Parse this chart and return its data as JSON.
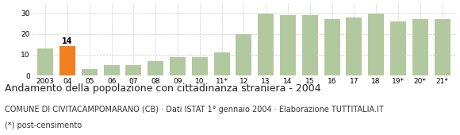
{
  "categories": [
    "2003",
    "04",
    "05",
    "06",
    "07",
    "08",
    "09",
    "10",
    "11*",
    "12",
    "13",
    "14",
    "15",
    "16",
    "17",
    "18",
    "19*",
    "20*",
    "21*"
  ],
  "values": [
    13,
    14,
    3,
    5,
    5,
    7,
    9,
    9,
    11,
    20,
    30,
    29,
    29,
    27,
    28,
    30,
    26,
    27,
    27
  ],
  "highlight_index": 1,
  "highlight_value": 14,
  "bar_color_normal": "#b2c9a0",
  "bar_color_highlight": "#f28020",
  "background_color": "#ffffff",
  "grid_color": "#cccccc",
  "title": "Andamento della popolazione con cittadinanza straniera - 2004",
  "subtitle": "COMUNE DI CIVITACAMPOMARANO (CB) · Dati ISTAT 1° gennaio 2004 · Elaborazione TUTTITALIA.IT",
  "footnote": "(*) post-censimento",
  "ylim": [
    0,
    35
  ],
  "yticks": [
    0,
    10,
    20,
    30
  ],
  "title_fontsize": 9,
  "subtitle_fontsize": 7,
  "footnote_fontsize": 7,
  "tick_fontsize": 6.5,
  "label_fontsize": 7
}
